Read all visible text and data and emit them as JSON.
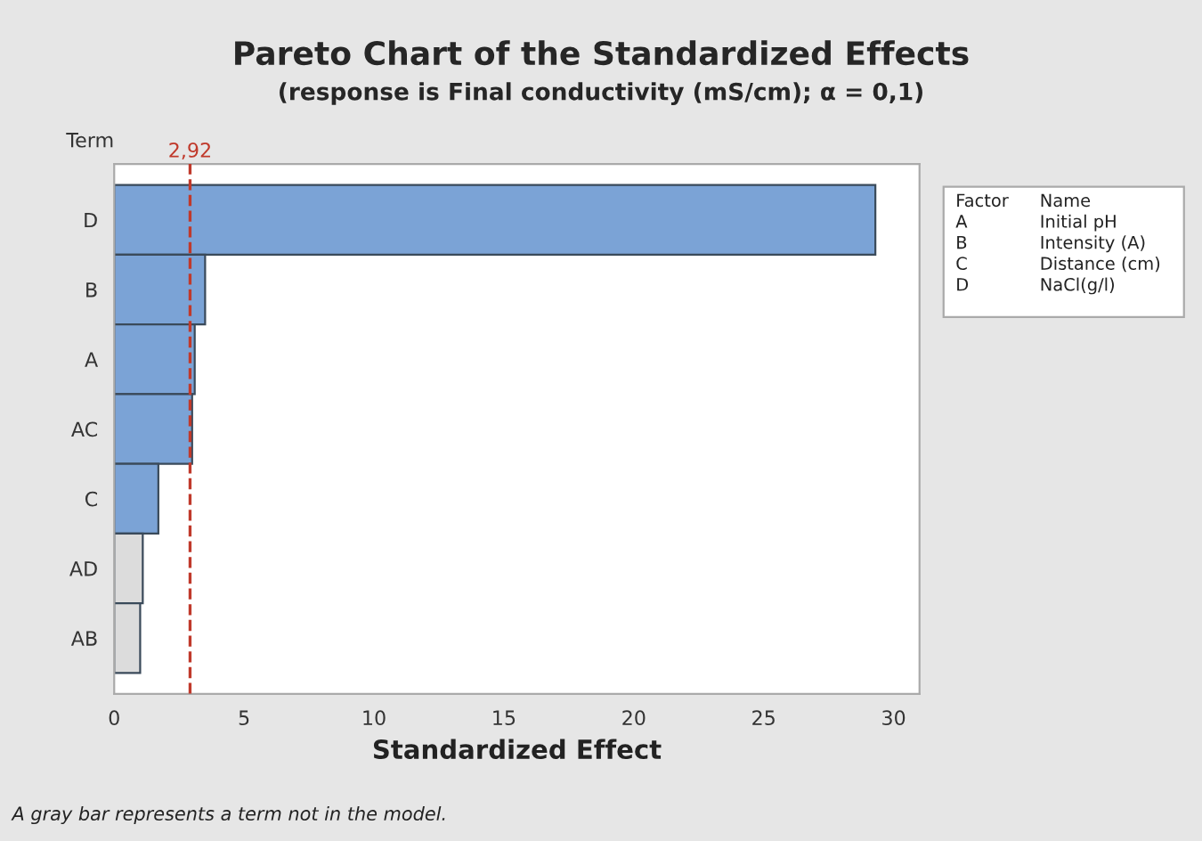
{
  "chart_data": {
    "type": "bar",
    "orientation": "horizontal",
    "title": "Pareto Chart of the Standardized Effects",
    "subtitle": "(response is Final conductivity (mS/cm); α = 0,1)",
    "xlabel": "Standardized Effect",
    "ylabel": "Term",
    "categories": [
      "D",
      "B",
      "A",
      "AC",
      "C",
      "AD",
      "AB"
    ],
    "values": [
      29.3,
      3.5,
      3.1,
      3.0,
      1.7,
      1.1,
      1.0
    ],
    "colors": [
      "#7ba3d6",
      "#7ba3d6",
      "#7ba3d6",
      "#7ba3d6",
      "#7ba3d6",
      "#dcdcdc",
      "#dcdcdc"
    ],
    "xlim": [
      0,
      31
    ],
    "xticks": [
      0,
      5,
      10,
      15,
      20,
      25,
      30
    ],
    "grid": false,
    "ref_lines": [
      {
        "axis": "x",
        "value": 2.92,
        "label": "2,92",
        "color": "#c0392b",
        "line_style": "dashed"
      }
    ],
    "annotations": [
      "Factor",
      "Name",
      "A",
      "Initial pH",
      "B",
      "Intensity (A)",
      "C",
      "Distance (cm)",
      "D",
      "NaCl(g/l)",
      "A gray bar represents a term not in the model."
    ]
  }
}
